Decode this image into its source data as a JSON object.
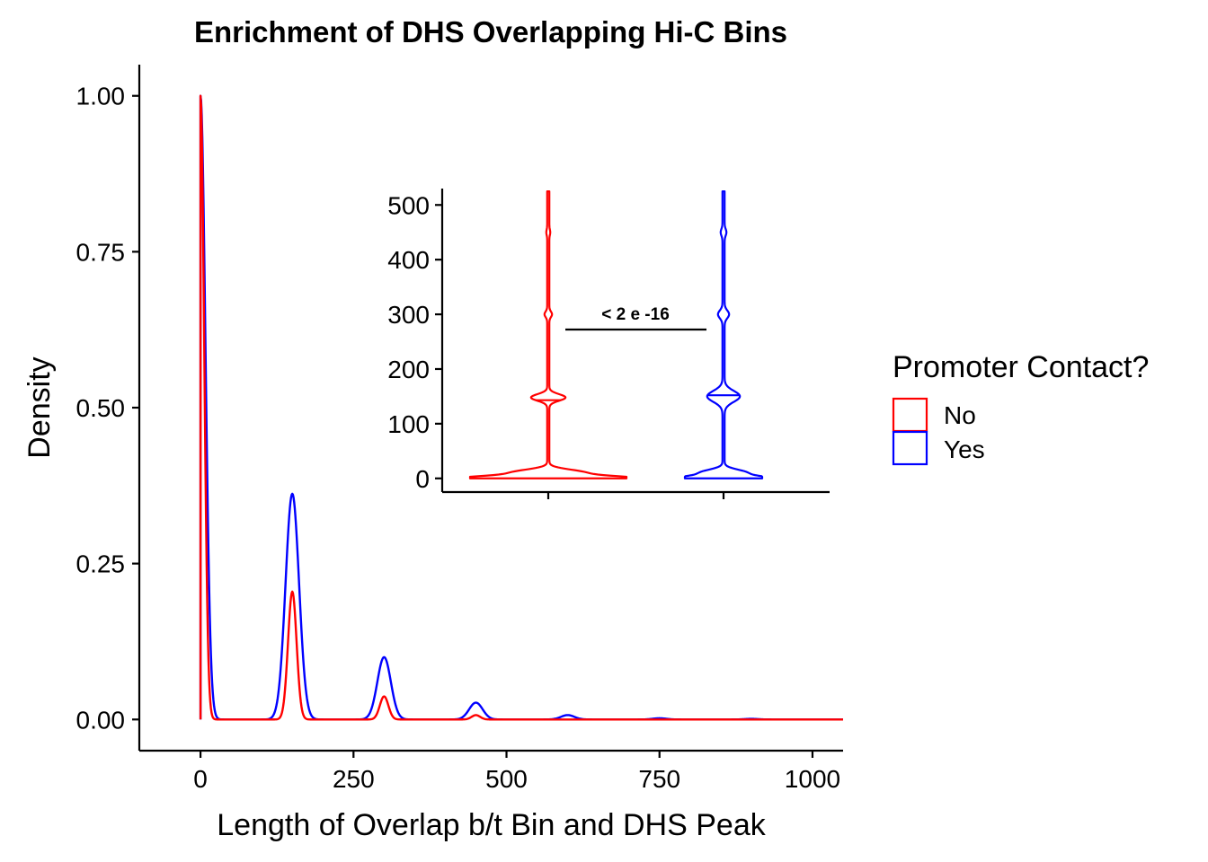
{
  "chart_data": {
    "type": "area",
    "title": "Enrichment of DHS Overlapping Hi-C Bins",
    "main": {
      "xlabel": "Length of Overlap b/t Bin and DHS Peak",
      "ylabel": "Density",
      "xlim": [
        -100,
        1050
      ],
      "ylim": [
        -0.05,
        1.05
      ],
      "xticks": [
        0,
        250,
        500,
        750,
        1000
      ],
      "yticks": [
        0.0,
        0.25,
        0.5,
        0.75,
        1.0
      ],
      "ytick_labels": [
        "0.00",
        "0.25",
        "0.50",
        "0.75",
        "1.00"
      ],
      "series": [
        {
          "name": "No",
          "color": "#ff0000",
          "peaks": [
            {
              "x": 0,
              "y": 1.0,
              "sigma": 6
            },
            {
              "x": 150,
              "y": 0.205,
              "sigma": 7
            },
            {
              "x": 300,
              "y": 0.037,
              "sigma": 7
            },
            {
              "x": 450,
              "y": 0.007,
              "sigma": 7
            }
          ]
        },
        {
          "name": "Yes",
          "color": "#0000ff",
          "peaks": [
            {
              "x": 0,
              "y": 1.0,
              "sigma": 8
            },
            {
              "x": 150,
              "y": 0.362,
              "sigma": 11
            },
            {
              "x": 300,
              "y": 0.1,
              "sigma": 11
            },
            {
              "x": 450,
              "y": 0.027,
              "sigma": 11
            },
            {
              "x": 600,
              "y": 0.007,
              "sigma": 11
            },
            {
              "x": 750,
              "y": 0.002,
              "sigma": 11
            },
            {
              "x": 900,
              "y": 0.001,
              "sigma": 11
            }
          ]
        }
      ]
    },
    "inset": {
      "type": "violin",
      "ylim": [
        -25,
        530
      ],
      "yticks": [
        0,
        100,
        200,
        300,
        400,
        500
      ],
      "ytick_labels": [
        "0",
        "100",
        "200",
        "300",
        "400",
        "500"
      ],
      "annotation": "< 2 e -16",
      "violins": [
        {
          "group": "No",
          "color": "#ff0000",
          "median": 143,
          "ymin": 0,
          "ymax": 525,
          "max_half_width": 87,
          "bumps": [
            {
              "y": 0,
              "hw": 87,
              "sigma": 4
            },
            {
              "y": 10,
              "hw": 40,
              "sigma": 6
            },
            {
              "y": 148,
              "hw": 18,
              "sigma": 6
            },
            {
              "y": 300,
              "hw": 3,
              "sigma": 5
            },
            {
              "y": 450,
              "hw": 1,
              "sigma": 5
            }
          ]
        },
        {
          "group": "Yes",
          "color": "#0000ff",
          "median": 152,
          "ymin": 0,
          "ymax": 525,
          "max_half_width": 43,
          "bumps": [
            {
              "y": 0,
              "hw": 43,
              "sigma": 4
            },
            {
              "y": 10,
              "hw": 25,
              "sigma": 6
            },
            {
              "y": 150,
              "hw": 17,
              "sigma": 10
            },
            {
              "y": 300,
              "hw": 5,
              "sigma": 7
            },
            {
              "y": 450,
              "hw": 2,
              "sigma": 6
            }
          ]
        }
      ]
    },
    "legend": {
      "title": "Promoter Contact?",
      "entries": [
        {
          "label": "No",
          "color": "#ff0000"
        },
        {
          "label": "Yes",
          "color": "#0000ff"
        }
      ],
      "position": "right"
    },
    "grid": false
  }
}
